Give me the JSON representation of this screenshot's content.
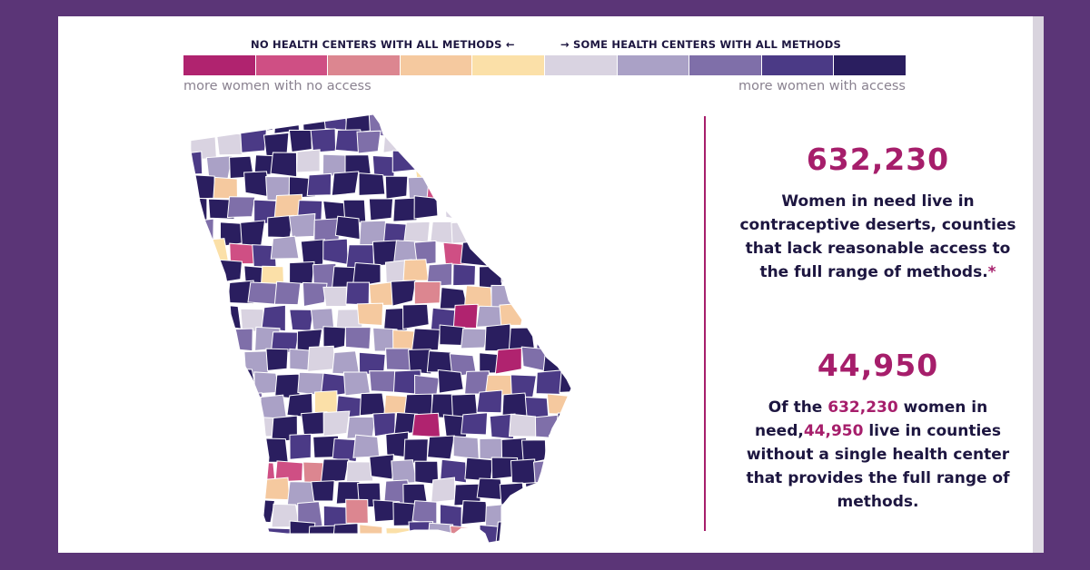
{
  "legend": {
    "left_heading": "NO HEALTH CENTERS WITH ALL METHODS",
    "right_heading": "SOME HEALTH CENTERS WITH ALL METHODS",
    "left_caption": "more women with no access",
    "right_caption": "more women with access",
    "colors": [
      "#b0236f",
      "#cf4f84",
      "#dc8690",
      "#f5c99f",
      "#fbe0a8",
      "#d9d3e1",
      "#aaa1c6",
      "#7f6fa9",
      "#4b3a86",
      "#2a1e5f"
    ]
  },
  "stat1": {
    "number": "632,230",
    "text": "Women in need live in contraceptive deserts, counties that lack reasonable access to the full range of methods.",
    "footnote_mark": "*"
  },
  "stat2": {
    "number": "44,950",
    "text_prefix": "Of the",
    "text_number1": "632,230",
    "text_mid1": "women in need,",
    "text_number2": "44,950",
    "text_suffix": "live in counties without a single health center that provides the full range of methods."
  }
}
